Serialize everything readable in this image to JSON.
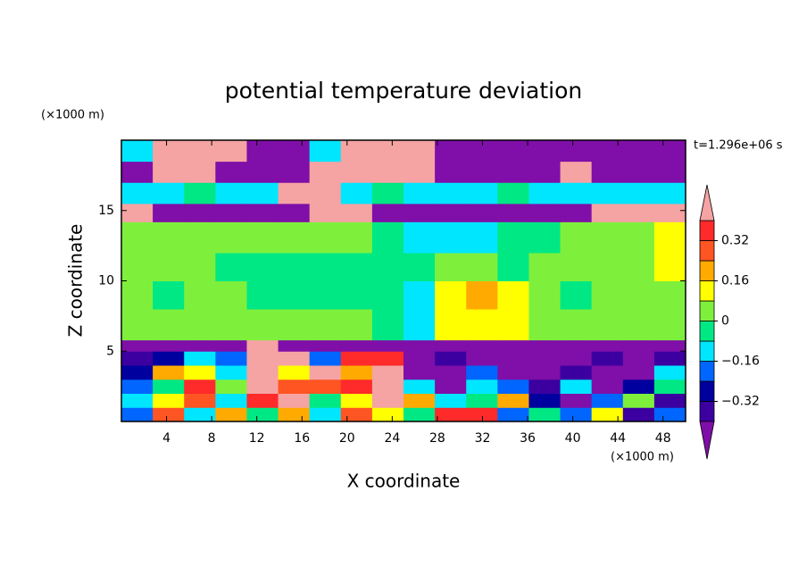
{
  "chart_data": {
    "type": "contour",
    "title": "potential temperature deviation",
    "x_label": "X coordinate",
    "y_label": "Z coordinate",
    "x_unit": "(×1000 m)",
    "y_unit": "(×1000 m)",
    "time_label": "t=1.296e+06 s",
    "xlim": [
      0,
      50
    ],
    "ylim": [
      0,
      20
    ],
    "xticks": [
      4,
      8,
      12,
      16,
      20,
      24,
      28,
      32,
      36,
      40,
      44,
      48
    ],
    "yticks": [
      5,
      10,
      15
    ],
    "levels": [
      -0.4,
      -0.32,
      -0.24,
      -0.16,
      -0.08,
      0,
      0.08,
      0.16,
      0.24,
      0.32,
      0.4
    ],
    "colors": [
      "#7f0fa8",
      "#3c00a0",
      "#00009e",
      "#0066ff",
      "#00e6ff",
      "#00e884",
      "#7ef03c",
      "#ffff00",
      "#ffaa00",
      "#ff5522",
      "#ff2a2a",
      "#f5a3a3"
    ],
    "colorbar_ticks": [
      {
        "value": -0.32,
        "label": "−0.32"
      },
      {
        "value": -0.16,
        "label": "−0.16"
      },
      0,
      0.16,
      0.32
    ],
    "z_edges": [
      0,
      1,
      2,
      3,
      4,
      5,
      5.8,
      8,
      10,
      12,
      14.2,
      15.5,
      17,
      18.5,
      20
    ],
    "values": [
      [
        -0.2,
        0.28,
        -0.12,
        0.2,
        -0.04,
        0.2,
        -0.12,
        0.28,
        0.12,
        -0.04,
        0.36,
        0.36,
        -0.2,
        -0.04,
        -0.2,
        0.12,
        -0.36,
        -0.2
      ],
      [
        -0.12,
        0.12,
        0.28,
        -0.12,
        0.36,
        0.45,
        -0.04,
        0.12,
        0.45,
        0.2,
        -0.12,
        -0.04,
        0.2,
        -0.28,
        -0.45,
        -0.2,
        0.04,
        -0.36
      ],
      [
        -0.2,
        -0.04,
        0.36,
        0.04,
        0.45,
        0.28,
        0.28,
        0.36,
        0.45,
        -0.12,
        -0.45,
        -0.12,
        -0.2,
        -0.36,
        -0.12,
        -0.45,
        -0.28,
        -0.04
      ],
      [
        -0.28,
        0.2,
        0.12,
        -0.12,
        0.45,
        0.12,
        0.45,
        0.2,
        0.45,
        -0.45,
        -0.45,
        -0.2,
        -0.45,
        -0.45,
        -0.36,
        -0.45,
        -0.45,
        -0.12
      ],
      [
        -0.36,
        -0.28,
        -0.12,
        -0.2,
        0.45,
        0.45,
        -0.2,
        0.36,
        0.36,
        -0.45,
        -0.36,
        -0.45,
        -0.45,
        -0.45,
        -0.45,
        -0.36,
        -0.45,
        -0.36
      ],
      [
        -0.45,
        -0.45,
        -0.45,
        -0.45,
        0.45,
        -0.45,
        -0.45,
        -0.45,
        -0.45,
        -0.45,
        -0.45,
        -0.45,
        -0.45,
        -0.45,
        -0.45,
        -0.45,
        -0.45,
        -0.45
      ],
      [
        0.04,
        0.04,
        0.04,
        0.04,
        0.04,
        0.04,
        0.04,
        0.04,
        -0.04,
        -0.12,
        0.12,
        0.12,
        0.12,
        0.04,
        0.04,
        0.04,
        0.04,
        0.04
      ],
      [
        0.04,
        -0.04,
        0.04,
        0.04,
        -0.04,
        -0.04,
        -0.04,
        -0.04,
        -0.04,
        -0.12,
        0.12,
        0.2,
        0.12,
        0.04,
        -0.04,
        0.04,
        0.04,
        0.04
      ],
      [
        0.04,
        0.04,
        0.04,
        -0.04,
        -0.04,
        -0.04,
        -0.04,
        -0.04,
        -0.04,
        -0.04,
        0.04,
        0.04,
        -0.04,
        0.04,
        0.04,
        0.04,
        0.04,
        0.12
      ],
      [
        0.04,
        0.04,
        0.04,
        0.04,
        0.04,
        0.04,
        0.04,
        0.04,
        -0.04,
        -0.12,
        -0.12,
        -0.12,
        -0.04,
        -0.04,
        0.04,
        0.04,
        0.04,
        0.12
      ],
      [
        0.45,
        -0.45,
        -0.45,
        -0.45,
        -0.45,
        -0.45,
        0.45,
        0.45,
        -0.45,
        -0.45,
        -0.45,
        -0.45,
        -0.45,
        -0.45,
        -0.45,
        0.45,
        0.45,
        0.45
      ],
      [
        -0.12,
        -0.12,
        -0.04,
        -0.12,
        -0.12,
        0.45,
        0.45,
        -0.12,
        -0.04,
        -0.12,
        -0.12,
        -0.12,
        -0.04,
        -0.12,
        -0.12,
        -0.12,
        -0.12,
        -0.12
      ],
      [
        -0.45,
        0.45,
        0.45,
        -0.45,
        -0.45,
        -0.45,
        0.45,
        0.45,
        0.45,
        0.45,
        -0.45,
        -0.45,
        -0.45,
        -0.45,
        0.45,
        -0.45,
        -0.45,
        -0.45
      ],
      [
        -0.12,
        0.45,
        0.45,
        0.45,
        -0.45,
        -0.45,
        -0.12,
        0.45,
        0.45,
        0.45,
        -0.45,
        -0.45,
        -0.45,
        -0.45,
        -0.45,
        -0.45,
        -0.45,
        -0.45
      ]
    ]
  }
}
